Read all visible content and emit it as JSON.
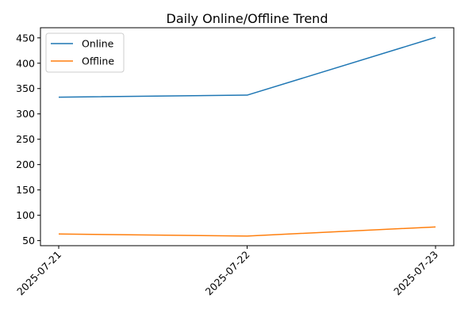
{
  "chart_data": {
    "type": "line",
    "title": "Daily Online/Offline Trend",
    "xlabel": "",
    "ylabel": "",
    "categories": [
      "2025-07-21",
      "2025-07-22",
      "2025-07-23"
    ],
    "series": [
      {
        "name": "Online",
        "color": "#1f77b4",
        "values": [
          333,
          337,
          451
        ]
      },
      {
        "name": "Offline",
        "color": "#ff7f0e",
        "values": [
          63,
          59,
          77
        ]
      }
    ],
    "y_ticks": [
      50,
      100,
      150,
      200,
      250,
      300,
      350,
      400,
      450
    ],
    "ylim": [
      40,
      470
    ],
    "grid": false,
    "legend_position": "upper left",
    "x_tick_rotation_deg": 45
  }
}
